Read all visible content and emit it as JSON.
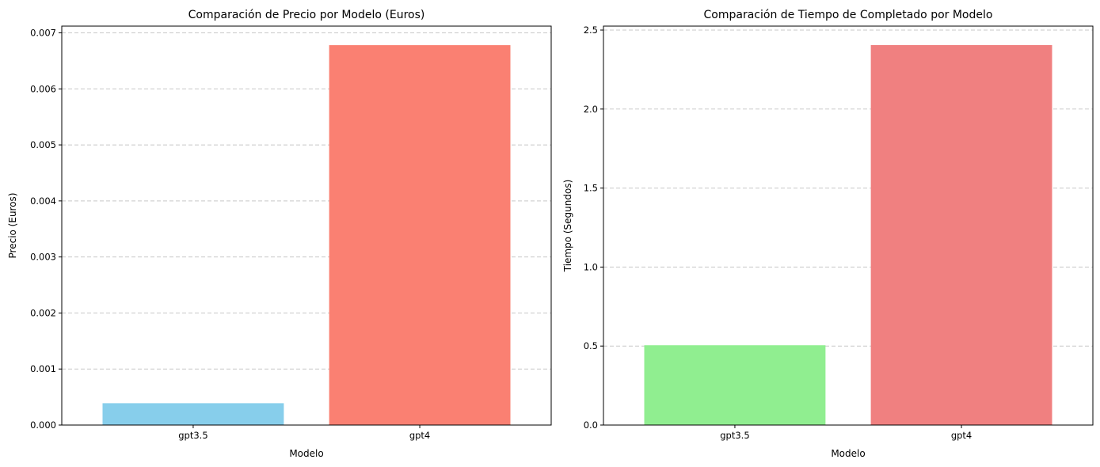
{
  "chart_data": [
    {
      "type": "bar",
      "title": "Comparación de Precio por Modelo (Euros)",
      "xlabel": "Modelo",
      "ylabel": "Precio (Euros)",
      "categories": [
        "gpt3.5",
        "gpt4"
      ],
      "values": [
        0.00039,
        0.00678
      ],
      "colors": [
        "#87ceeb",
        "#fa8072"
      ],
      "ylim": [
        0,
        0.00712
      ],
      "yticks": [
        0,
        0.001,
        0.002,
        0.003,
        0.004,
        0.005,
        0.006,
        0.007
      ],
      "ytick_labels": [
        "0.000",
        "0.001",
        "0.002",
        "0.003",
        "0.004",
        "0.005",
        "0.006",
        "0.007"
      ],
      "grid": "y-dashed"
    },
    {
      "type": "bar",
      "title": "Comparación de Tiempo de Completado por Modelo",
      "xlabel": "Modelo",
      "ylabel": "Tiempo (Segundos)",
      "categories": [
        "gpt3.5",
        "gpt4"
      ],
      "values": [
        0.505,
        2.405
      ],
      "colors": [
        "#90ee90",
        "#f08080"
      ],
      "ylim": [
        0,
        2.525
      ],
      "yticks": [
        0,
        0.5,
        1.0,
        1.5,
        2.0,
        2.5
      ],
      "ytick_labels": [
        "0.0",
        "0.5",
        "1.0",
        "1.5",
        "2.0",
        "2.5"
      ],
      "grid": "y-dashed"
    }
  ]
}
